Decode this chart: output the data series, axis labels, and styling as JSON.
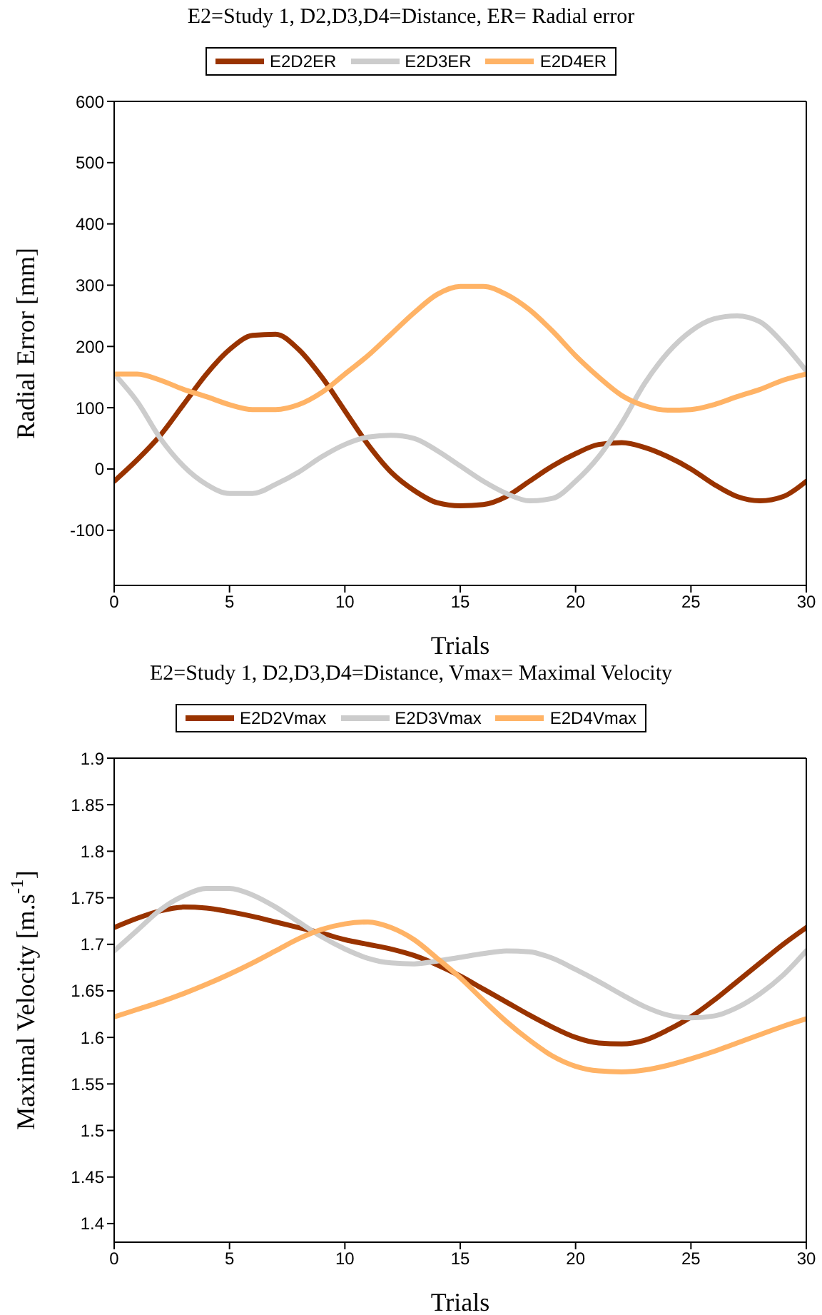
{
  "chart_data": [
    {
      "type": "line",
      "title": "E2=Study 1,  D2,D3,D4=Distance,  ER= Radial error",
      "xlabel": "Trials",
      "ylabel": "Radial Error [mm]",
      "x": [
        0,
        1,
        2,
        3,
        4,
        5,
        6,
        7,
        8,
        9,
        10,
        11,
        12,
        13,
        14,
        15,
        16,
        17,
        18,
        19,
        20,
        21,
        22,
        23,
        24,
        25,
        26,
        27,
        28,
        29,
        30
      ],
      "series": [
        {
          "name": "E2D2ER",
          "color": "#993300",
          "values": [
            -20,
            15,
            55,
            105,
            155,
            195,
            218,
            220,
            195,
            150,
            95,
            40,
            -5,
            -35,
            -55,
            -60,
            -58,
            -45,
            -20,
            5,
            25,
            40,
            43,
            35,
            20,
            0,
            -25,
            -45,
            -52,
            -45,
            -20
          ]
        },
        {
          "name": "E2D3ER",
          "color": "#cccccc",
          "values": [
            155,
            110,
            50,
            5,
            -25,
            -40,
            -40,
            -25,
            -5,
            20,
            40,
            52,
            55,
            50,
            30,
            5,
            -20,
            -40,
            -52,
            -48,
            -20,
            20,
            75,
            140,
            190,
            225,
            245,
            250,
            240,
            205,
            160
          ]
        },
        {
          "name": "E2D4ER",
          "color": "#ffb366",
          "values": [
            155,
            155,
            145,
            130,
            118,
            105,
            97,
            97,
            105,
            125,
            155,
            185,
            220,
            255,
            285,
            298,
            298,
            285,
            260,
            225,
            185,
            150,
            120,
            103,
            96,
            97,
            105,
            118,
            130,
            145,
            155
          ]
        }
      ],
      "xlim": [
        0,
        30
      ],
      "xticks": [
        0,
        5,
        10,
        15,
        20,
        25,
        30
      ],
      "ylim": [
        -190,
        600
      ],
      "yticks": [
        -100,
        0,
        100,
        200,
        300,
        400,
        500,
        600
      ],
      "grid": false,
      "legend": "top",
      "marker": "none",
      "line_style": "solid"
    },
    {
      "type": "line",
      "title": "E2=Study 1,  D2,D3,D4=Distance,  Vmax= Maximal Velocity",
      "xlabel": "Trials",
      "ylabel": "Maximal Velocity [m.s$^{-1}$]",
      "x": [
        0,
        1,
        2,
        3,
        4,
        5,
        6,
        7,
        8,
        9,
        10,
        11,
        12,
        13,
        14,
        15,
        16,
        17,
        18,
        19,
        20,
        21,
        22,
        23,
        24,
        25,
        26,
        27,
        28,
        29,
        30
      ],
      "series": [
        {
          "name": "E2D2Vmax",
          "color": "#993300",
          "values": [
            1.718,
            1.728,
            1.736,
            1.74,
            1.739,
            1.735,
            1.73,
            1.724,
            1.718,
            1.712,
            1.705,
            1.7,
            1.695,
            1.688,
            1.678,
            1.666,
            1.652,
            1.638,
            1.624,
            1.611,
            1.6,
            1.594,
            1.593,
            1.597,
            1.608,
            1.622,
            1.64,
            1.66,
            1.68,
            1.7,
            1.718
          ]
        },
        {
          "name": "E2D3Vmax",
          "color": "#cccccc",
          "values": [
            1.693,
            1.715,
            1.737,
            1.752,
            1.76,
            1.76,
            1.753,
            1.74,
            1.724,
            1.708,
            1.695,
            1.685,
            1.68,
            1.679,
            1.682,
            1.686,
            1.69,
            1.693,
            1.692,
            1.685,
            1.673,
            1.66,
            1.646,
            1.633,
            1.624,
            1.621,
            1.623,
            1.632,
            1.647,
            1.667,
            1.693
          ]
        },
        {
          "name": "E2D4Vmax",
          "color": "#ffb366",
          "values": [
            1.622,
            1.63,
            1.638,
            1.647,
            1.657,
            1.668,
            1.68,
            1.693,
            1.706,
            1.716,
            1.722,
            1.724,
            1.718,
            1.705,
            1.685,
            1.664,
            1.64,
            1.617,
            1.597,
            1.58,
            1.569,
            1.564,
            1.563,
            1.565,
            1.57,
            1.577,
            1.585,
            1.594,
            1.603,
            1.612,
            1.62
          ]
        }
      ],
      "xlim": [
        0,
        30
      ],
      "xticks": [
        0,
        5,
        10,
        15,
        20,
        25,
        30
      ],
      "ylim": [
        1.38,
        1.9
      ],
      "yticks": [
        1.4,
        1.45,
        1.5,
        1.55,
        1.6,
        1.65,
        1.7,
        1.75,
        1.8,
        1.85,
        1.9
      ],
      "grid": false,
      "legend": "top",
      "marker": "none",
      "line_style": "solid"
    }
  ]
}
